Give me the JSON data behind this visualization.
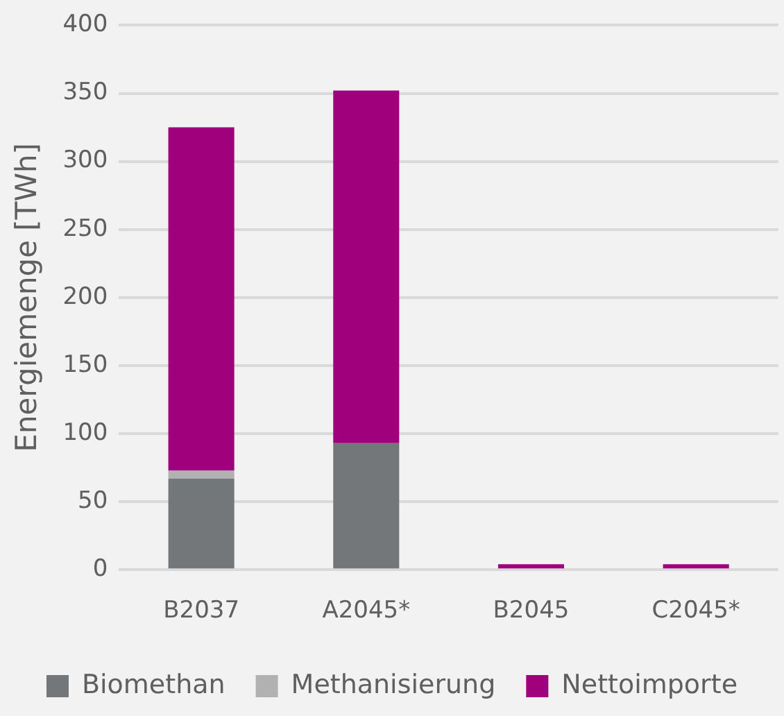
{
  "chart_data": {
    "type": "bar",
    "ylabel": "Energiemenge [TWh]",
    "categories": [
      "B2037",
      "A2045*",
      "B2045",
      "C2045*"
    ],
    "series": [
      {
        "name": "Biomethan",
        "color": "#73777a",
        "values": [
          67,
          93,
          0,
          0
        ]
      },
      {
        "name": "Methanisierung",
        "color": "#b0b1b0",
        "values": [
          6,
          0,
          0,
          0
        ]
      },
      {
        "name": "Nettoimporte",
        "color": "#a0007b",
        "values": [
          252,
          259,
          4,
          4
        ]
      }
    ],
    "stacked": true,
    "ylim": [
      0,
      400
    ],
    "yticks": [
      0,
      50,
      100,
      150,
      200,
      250,
      300,
      350,
      400
    ],
    "grid": "y",
    "legend": "bottom"
  }
}
